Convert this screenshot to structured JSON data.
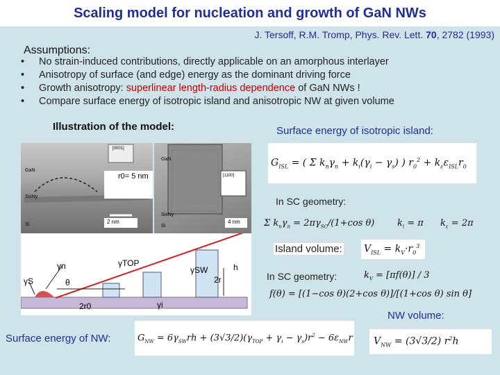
{
  "title": "Scaling model for nucleation and growth of GaN NWs",
  "reference": {
    "authors": "J. Tersoff,  R.M. Tromp, Phys. Rev. Lett.",
    "volume": "70",
    "pages": ", 2782 (1993)"
  },
  "assumptions_heading": "Assumptions:",
  "bullets": [
    {
      "text": "No strain-induced contributions, directly applicable on an amorphous interlayer"
    },
    {
      "text": "Anisotropy of surface (and edge) energy as the dominant driving force"
    },
    {
      "pre": "Growth anisotropy: ",
      "red": "superlinear length-radius dependence",
      "post": " of GaN NWs !"
    },
    {
      "text": "Compare surface energy of isotropic island and anisotropic NW at given volume"
    }
  ],
  "illustration_heading": "Illustration of the model:",
  "surface_isotropic_heading": "Surface energy of isotropic island:",
  "sc_geometry_1": "In SC geometry:",
  "island_volume_label": "Island volume:",
  "sc_geometry_2": "In SC geometry:",
  "nw_volume_label": "NW volume:",
  "nw_surface_label": "Surface energy of NW:",
  "image_labels": {
    "r0": "r0= 5 nm",
    "gan": "GaN",
    "sin": "SixNy",
    "si": "Si",
    "scale1": "2 nm",
    "scale2": "4 nm",
    "dir1": "[0001]",
    "dir2": "[1100]"
  },
  "diagram_labels": {
    "gamma_s": "γS",
    "gamma_n": "γn",
    "theta": "θ",
    "gamma_top": "γTOP",
    "gamma_sw": "γSW",
    "h": "h",
    "two_r": "2r",
    "two_r0": "2r0",
    "gamma_i": "γi"
  }
}
